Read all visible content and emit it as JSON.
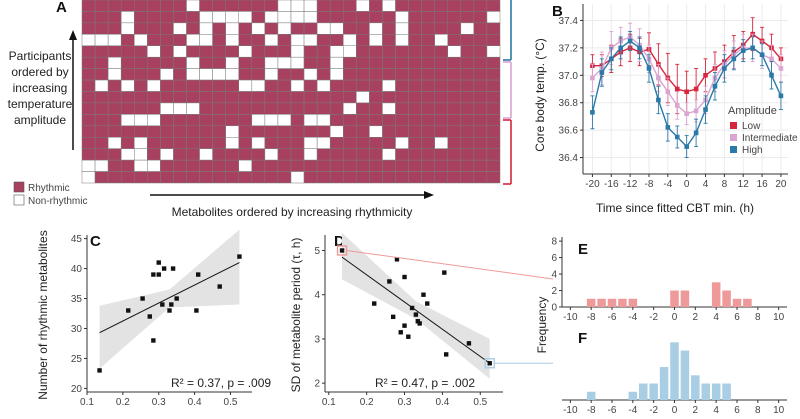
{
  "panels": {
    "a": "A",
    "b": "B",
    "c": "C",
    "d": "D",
    "e": "E",
    "f": "F"
  },
  "colors": {
    "rhythmic": "#a8405f",
    "nonrhythmic": "#ffffff",
    "low": "#d7263d",
    "intermediate": "#d9a5d1",
    "high": "#2b79a8",
    "bar_e": "#ee9a9a",
    "bar_f": "#a9cde3",
    "band": "#e3e3e3"
  },
  "heatmap": {
    "y_label_lines": [
      "Participants",
      "ordered by",
      "increasing",
      "temperature",
      "amplitude"
    ],
    "x_label": "Metabolites ordered by increasing rhythmicity",
    "legend": {
      "rhythmic": "Rhythmic",
      "nonrhythmic": "Non-rhythmic"
    }
  },
  "chart_data": [
    {
      "id": "A",
      "type": "heatmap",
      "rows": 16,
      "cols": 32,
      "note": "Each row is a participant; each column a metabolite. Cell is rhythmic or non-rhythmic.",
      "pattern": [
        "11111111011111100011101011111111",
        "11101111100001000011111101111110",
        "11101110101010101100110101111011",
        "00010111001011010011010101101111",
        "11111010111101110110011111110110",
        "11011111011011000110111111111111",
        "11011101000011011010111111111111",
        "10101011111100110101111011111111",
        "11111111111111111111101111111111",
        "11111100011111111111011011111111",
        "11100011111110001001111111111111",
        "11111111111011111110110111111111",
        "11010111111010111001111101101111",
        "11100101101111011011111011111111",
        "00110011111101111111111111111111",
        "01111111111111110111111111111111"
      ]
    },
    {
      "id": "B",
      "type": "line",
      "title": "",
      "xlabel": "Time since fitted CBT min. (h)",
      "ylabel": "Core body temp. (°C)",
      "xlim": [
        -22,
        21.5
      ],
      "ylim": [
        36.28,
        37.52
      ],
      "xticks": [
        "-20",
        "-16",
        "-12",
        "-8",
        "-4",
        "0",
        "4",
        "8",
        "12",
        "16",
        "20"
      ],
      "yticks": [
        "36.4",
        "36.6",
        "36.8",
        "37.0",
        "37.2",
        "37.4"
      ],
      "legend_title": "Amplitude",
      "x": [
        -20,
        -18,
        -16,
        -14,
        -12,
        -10,
        -8,
        -6,
        -4,
        -2,
        0,
        2,
        4,
        6,
        8,
        10,
        12,
        14,
        16,
        18,
        20
      ],
      "series": [
        {
          "name": "Low",
          "color_key": "low",
          "values": [
            37.07,
            37.07,
            37.12,
            37.17,
            37.2,
            37.17,
            37.19,
            37.08,
            36.98,
            36.9,
            36.88,
            36.9,
            37.0,
            37.05,
            37.1,
            37.17,
            37.22,
            37.3,
            37.25,
            37.2,
            37.12
          ],
          "err": [
            0.08,
            0.08,
            0.1,
            0.1,
            0.1,
            0.1,
            0.12,
            0.15,
            0.18,
            0.18,
            0.15,
            0.15,
            0.12,
            0.12,
            0.12,
            0.12,
            0.1,
            0.12,
            0.1,
            0.1,
            0.08
          ]
        },
        {
          "name": "Intermediate",
          "color_key": "intermediate",
          "values": [
            36.98,
            37.05,
            37.2,
            37.25,
            37.28,
            37.22,
            37.12,
            36.98,
            36.88,
            36.78,
            36.72,
            36.74,
            36.82,
            36.98,
            37.08,
            37.15,
            37.2,
            37.2,
            37.15,
            37.12,
            37.05
          ],
          "err": [
            0.1,
            0.12,
            0.12,
            0.1,
            0.1,
            0.12,
            0.1,
            0.1,
            0.1,
            0.1,
            0.08,
            0.08,
            0.1,
            0.1,
            0.1,
            0.1,
            0.1,
            0.1,
            0.1,
            0.1,
            0.1
          ]
        },
        {
          "name": "High",
          "color_key": "high",
          "values": [
            36.73,
            37.02,
            37.12,
            37.2,
            37.25,
            37.2,
            37.05,
            36.82,
            36.62,
            36.55,
            36.48,
            36.58,
            36.75,
            36.92,
            37.05,
            37.12,
            37.18,
            37.2,
            37.15,
            37.0,
            36.85
          ],
          "err": [
            0.12,
            0.1,
            0.08,
            0.08,
            0.07,
            0.08,
            0.1,
            0.1,
            0.1,
            0.08,
            0.08,
            0.1,
            0.1,
            0.1,
            0.1,
            0.08,
            0.08,
            0.08,
            0.08,
            0.1,
            0.1
          ]
        }
      ]
    },
    {
      "id": "C",
      "type": "scatter",
      "xlabel": "",
      "ylabel": "Number of rhythmic metabolites",
      "xlim": [
        0.1,
        0.56
      ],
      "ylim": [
        19.4,
        45.6
      ],
      "xticks": [
        "0.1",
        "0.2",
        "0.3",
        "0.4",
        "0.5"
      ],
      "yticks": [
        "20",
        "25",
        "30",
        "35",
        "40",
        "45"
      ],
      "points": [
        [
          0.135,
          23
        ],
        [
          0.215,
          33
        ],
        [
          0.255,
          35
        ],
        [
          0.275,
          32
        ],
        [
          0.285,
          28
        ],
        [
          0.285,
          39
        ],
        [
          0.3,
          39
        ],
        [
          0.3,
          41
        ],
        [
          0.31,
          34
        ],
        [
          0.315,
          40
        ],
        [
          0.33,
          33
        ],
        [
          0.335,
          34
        ],
        [
          0.34,
          40
        ],
        [
          0.35,
          35
        ],
        [
          0.405,
          33
        ],
        [
          0.41,
          39
        ],
        [
          0.47,
          37
        ],
        [
          0.525,
          42
        ]
      ],
      "fit": {
        "x": [
          0.135,
          0.525
        ],
        "y": [
          29.3,
          41.0
        ]
      },
      "annotation": "R² = 0.37, p = .009"
    },
    {
      "id": "D",
      "type": "scatter",
      "xlabel": "",
      "ylabel": "SD of metabolite period (τ, h)",
      "xlim": [
        0.09,
        0.56
      ],
      "ylim": [
        1.8,
        5.35
      ],
      "xticks": [
        "0.1",
        "0.2",
        "0.3",
        "0.4",
        "0.5"
      ],
      "yticks": [
        "2",
        "3",
        "4",
        "5"
      ],
      "points": [
        [
          0.135,
          5.0
        ],
        [
          0.22,
          3.8
        ],
        [
          0.26,
          4.3
        ],
        [
          0.27,
          3.5
        ],
        [
          0.28,
          4.8
        ],
        [
          0.29,
          3.15
        ],
        [
          0.3,
          4.4
        ],
        [
          0.3,
          3.3
        ],
        [
          0.31,
          3.05
        ],
        [
          0.32,
          3.7
        ],
        [
          0.33,
          3.55
        ],
        [
          0.335,
          3.4
        ],
        [
          0.34,
          3.35
        ],
        [
          0.35,
          4.0
        ],
        [
          0.36,
          3.8
        ],
        [
          0.405,
          4.5
        ],
        [
          0.41,
          2.65
        ],
        [
          0.47,
          2.9
        ],
        [
          0.525,
          2.45
        ]
      ],
      "highlight": [
        [
          0.135,
          5.0
        ],
        [
          0.525,
          2.45
        ]
      ],
      "fit": {
        "x": [
          0.135,
          0.525
        ],
        "y": [
          4.85,
          2.45
        ]
      },
      "annotation": "R² = 0.47, p = .002"
    },
    {
      "id": "E",
      "type": "bar",
      "xlabel": "",
      "ylabel": "Frequency",
      "xlim": [
        -10.8,
        10.8
      ],
      "ylim": [
        0,
        8.5
      ],
      "xticks": [
        "-10",
        "-8",
        "-6",
        "-4",
        "-2",
        "0",
        "2",
        "4",
        "6",
        "8",
        "10"
      ],
      "yticks": [
        "0",
        "2",
        "4",
        "6",
        "8"
      ],
      "bin_centers": [
        -8,
        -7,
        -6,
        -5,
        -4,
        0,
        1,
        4,
        5,
        6,
        7
      ],
      "values": [
        1,
        1,
        1,
        1,
        1,
        2,
        2,
        3,
        2,
        1,
        1
      ]
    },
    {
      "id": "F",
      "type": "bar",
      "xlabel": "",
      "ylabel": "Frequency",
      "xlim": [
        -10.8,
        10.8
      ],
      "ylim": [
        0,
        8.5
      ],
      "xticks": [
        "-10",
        "-8",
        "-6",
        "-4",
        "-2",
        "0",
        "2",
        "4",
        "6",
        "8",
        "10"
      ],
      "yticks": [],
      "bin_centers": [
        -8,
        -4,
        -3,
        -2,
        -1,
        0,
        1,
        2,
        3,
        4,
        5
      ],
      "values": [
        1,
        1,
        2,
        2,
        4,
        7,
        6,
        3,
        2,
        2,
        2
      ]
    }
  ]
}
